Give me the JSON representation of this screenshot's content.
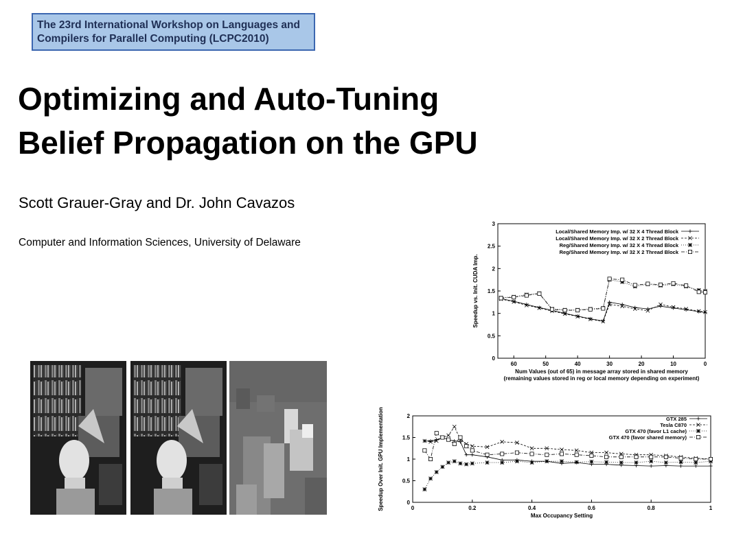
{
  "banner": {
    "line1": "The 23rd International Workshop on Languages and",
    "line2": "Compilers for Parallel Computing (LCPC2010)"
  },
  "title": {
    "line1": "Optimizing and Auto-Tuning",
    "line2": "Belief Propagation on the GPU"
  },
  "authors": "Scott Grauer-Gray and Dr. John Cavazos",
  "affiliation": "Computer and Information Sciences, University of Delaware",
  "chart_data": [
    {
      "type": "line",
      "ylabel": "Speedup vs. Init. CUDA Imp.",
      "xlabel": "Num Values (out of 65) in message array stored in shared memory",
      "xlabel2": "(remaining values stored in reg or local memory depending on experiment)",
      "xlim": [
        65,
        0
      ],
      "ylim": [
        0,
        3
      ],
      "xticks": [
        60,
        50,
        40,
        30,
        20,
        10,
        0
      ],
      "yticks": [
        0,
        0.5,
        1,
        1.5,
        2,
        2.5,
        3
      ],
      "legend": "top-right",
      "x": [
        64,
        60,
        56,
        52,
        48,
        44,
        40,
        36,
        32,
        30,
        26,
        22,
        18,
        14,
        10,
        6,
        2,
        0
      ],
      "series": [
        {
          "name": "Local/Shared Memory Imp. w/ 32 X 4 Thread Block",
          "marker": "+",
          "values": [
            1.33,
            1.27,
            1.2,
            1.13,
            1.07,
            1.0,
            0.94,
            0.88,
            0.83,
            1.25,
            1.2,
            1.13,
            1.1,
            1.16,
            1.12,
            1.08,
            1.04,
            1.02
          ]
        },
        {
          "name": "Local/Shared Memory Imp. w/ 32 X 2 Thread Block",
          "marker": "x",
          "values": [
            1.32,
            1.26,
            1.18,
            1.12,
            1.05,
            0.99,
            0.93,
            0.87,
            0.82,
            1.2,
            1.16,
            1.1,
            1.06,
            1.2,
            1.14,
            1.1,
            1.05,
            1.03
          ]
        },
        {
          "name": "Reg/Shared Memory Imp. w/ 32 X 4 Thread Block",
          "marker": "*",
          "values": [
            1.35,
            1.37,
            1.42,
            1.45,
            1.1,
            1.08,
            1.08,
            1.1,
            1.12,
            1.75,
            1.7,
            1.6,
            1.65,
            1.62,
            1.65,
            1.6,
            1.52,
            1.5
          ]
        },
        {
          "name": "Reg/Shared Memory Imp. w/ 32 X 2 Thread Block",
          "marker": "square",
          "values": [
            1.34,
            1.36,
            1.4,
            1.44,
            1.09,
            1.07,
            1.07,
            1.09,
            1.11,
            1.77,
            1.75,
            1.63,
            1.66,
            1.64,
            1.67,
            1.62,
            1.48,
            1.47
          ]
        }
      ]
    },
    {
      "type": "line",
      "ylabel": "Speedup Over Init. GPU Implementation",
      "xlabel": "Max Occupancy Setting",
      "xlim": [
        0,
        1
      ],
      "ylim": [
        0,
        2
      ],
      "xticks": [
        0,
        0.2,
        0.4,
        0.6,
        0.8,
        1
      ],
      "yticks": [
        0,
        0.5,
        1,
        1.5,
        2
      ],
      "legend": "top-right",
      "x": [
        0.04,
        0.06,
        0.08,
        0.1,
        0.12,
        0.14,
        0.16,
        0.18,
        0.2,
        0.25,
        0.3,
        0.35,
        0.4,
        0.45,
        0.5,
        0.55,
        0.6,
        0.65,
        0.7,
        0.75,
        0.8,
        0.85,
        0.9,
        0.95,
        1.0
      ],
      "series": [
        {
          "name": "GTX 285",
          "marker": "+",
          "values": [
            1.42,
            1.42,
            1.45,
            1.5,
            1.45,
            1.42,
            1.4,
            1.1,
            1.1,
            1.05,
            0.98,
            0.98,
            0.95,
            0.95,
            0.9,
            0.92,
            0.88,
            0.88,
            0.86,
            0.85,
            0.84,
            0.85,
            0.84,
            0.84,
            0.84
          ]
        },
        {
          "name": "Tesla C870",
          "marker": "x",
          "values": [
            1.42,
            1.4,
            1.42,
            1.5,
            1.55,
            1.75,
            1.45,
            1.35,
            1.3,
            1.28,
            1.4,
            1.38,
            1.25,
            1.25,
            1.22,
            1.2,
            1.15,
            1.15,
            1.12,
            1.1,
            1.1,
            1.08,
            1.05,
            1.02,
            1.0
          ]
        },
        {
          "name": "GTX 470 (favor L1 cache)",
          "marker": "*",
          "values": [
            0.3,
            0.55,
            0.7,
            0.82,
            0.92,
            0.95,
            0.9,
            0.88,
            0.9,
            0.92,
            0.92,
            0.95,
            0.92,
            0.95,
            0.95,
            0.93,
            0.94,
            0.93,
            0.92,
            0.92,
            0.95,
            0.92,
            0.93,
            0.92,
            0.95
          ]
        },
        {
          "name": "GTX 470 (favor shared memory)",
          "marker": "square",
          "values": [
            1.2,
            1.0,
            1.6,
            1.5,
            1.45,
            1.35,
            1.5,
            1.3,
            1.2,
            1.1,
            1.12,
            1.15,
            1.12,
            1.1,
            1.12,
            1.1,
            1.08,
            1.05,
            1.05,
            1.05,
            1.05,
            1.05,
            1.02,
            1.0,
            1.0
          ]
        }
      ]
    }
  ]
}
